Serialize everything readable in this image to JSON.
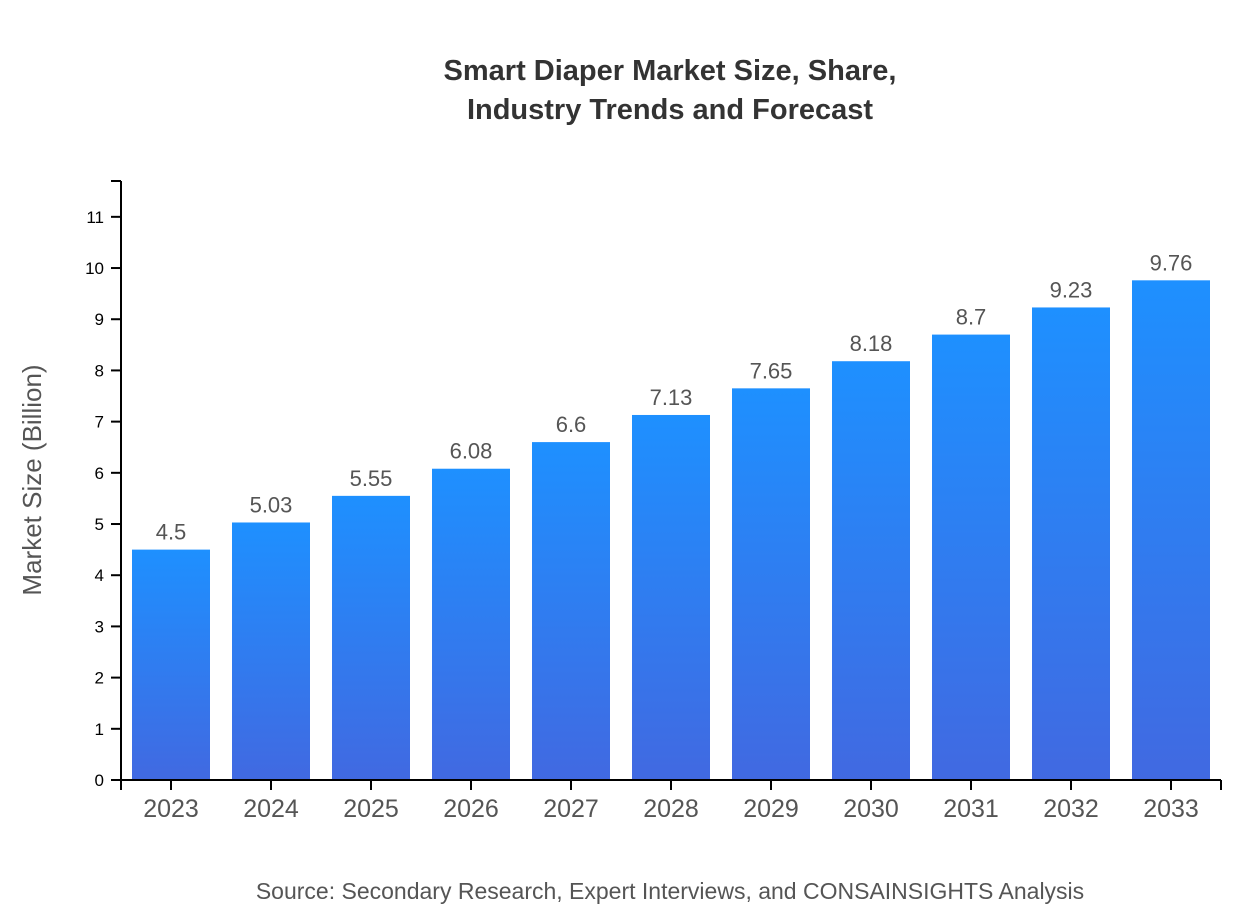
{
  "chart_data": {
    "type": "bar",
    "title_lines": [
      "Smart Diaper Market Size, Share,",
      "Industry Trends and Forecast"
    ],
    "xlabel": "",
    "ylabel": "Market Size (Billion)",
    "categories": [
      "2023",
      "2024",
      "2025",
      "2026",
      "2027",
      "2028",
      "2029",
      "2030",
      "2031",
      "2032",
      "2033"
    ],
    "values": [
      4.5,
      5.03,
      5.55,
      6.08,
      6.6,
      7.13,
      7.65,
      8.18,
      8.7,
      9.23,
      9.76
    ],
    "data_labels": [
      "4.5",
      "5.03",
      "5.55",
      "6.08",
      "6.6",
      "7.13",
      "7.65",
      "8.18",
      "8.7",
      "9.23",
      "9.76"
    ],
    "yticks": [
      0,
      1,
      2,
      3,
      4,
      5,
      6,
      7,
      8,
      9,
      10,
      11
    ],
    "ylim": [
      0,
      11.7
    ],
    "grid": false,
    "colors": {
      "bar_top": "#1e90ff",
      "bar_bottom": "#4169e1"
    }
  },
  "source": "Source: Secondary Research, Expert Interviews, and CONSAINSIGHTS Analysis"
}
